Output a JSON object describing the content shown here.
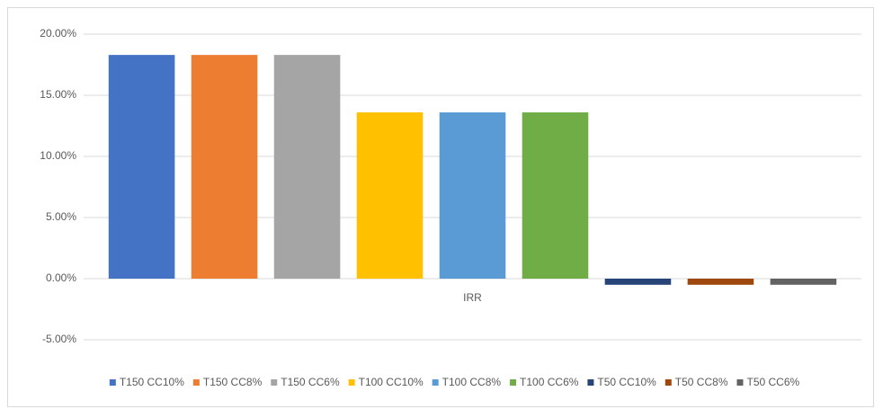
{
  "chart_data": {
    "type": "bar",
    "categories": [
      "IRR"
    ],
    "series": [
      {
        "name": "T150 CC10%",
        "color": "#4472c4",
        "values": [
          18.3
        ]
      },
      {
        "name": "T150 CC8%",
        "color": "#ed7d31",
        "values": [
          18.3
        ]
      },
      {
        "name": "T150 CC6%",
        "color": "#a5a5a5",
        "values": [
          18.3
        ]
      },
      {
        "name": "T100 CC10%",
        "color": "#ffc000",
        "values": [
          13.6
        ]
      },
      {
        "name": "T100 CC8%",
        "color": "#5b9bd5",
        "values": [
          13.6
        ]
      },
      {
        "name": "T100 CC6%",
        "color": "#70ad47",
        "values": [
          13.6
        ]
      },
      {
        "name": "T50 CC10%",
        "color": "#264478",
        "values": [
          -0.5
        ]
      },
      {
        "name": "T50 CC8%",
        "color": "#9e480e",
        "values": [
          -0.5
        ]
      },
      {
        "name": "T50 CC6%",
        "color": "#636363",
        "values": [
          -0.5
        ]
      }
    ],
    "ylim": [
      -5,
      20
    ],
    "yticks": [
      {
        "value": -5,
        "label": "-5.00%"
      },
      {
        "value": 0,
        "label": "0.00%"
      },
      {
        "value": 5,
        "label": "5.00%"
      },
      {
        "value": 10,
        "label": "10.00%"
      },
      {
        "value": 15,
        "label": "15.00%"
      },
      {
        "value": 20,
        "label": "20.00%"
      }
    ],
    "grid": true,
    "legend": "bottom"
  }
}
